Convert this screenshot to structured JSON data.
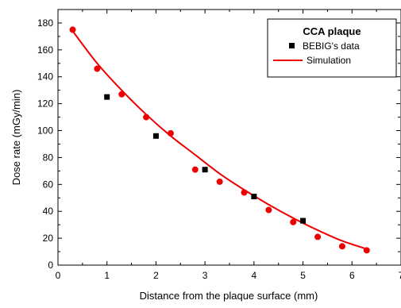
{
  "chart_data": {
    "type": "scatter",
    "title": "",
    "xlabel": "Distance from the plaque surface (mm)",
    "ylabel": "Dose rate (mGy/min)",
    "xlim": [
      0,
      7
    ],
    "ylim": [
      0,
      190
    ],
    "x_ticks": [
      0,
      1,
      2,
      3,
      4,
      5,
      6,
      7
    ],
    "y_ticks": [
      0,
      20,
      40,
      60,
      80,
      100,
      120,
      140,
      160,
      180
    ],
    "grid": false,
    "legend": {
      "title": "CCA plaque",
      "position": "top-right",
      "entries": [
        "BEBIG's data",
        "Simulation"
      ]
    },
    "series": [
      {
        "name": "BEBIG's data",
        "marker": "square",
        "color": "#000000",
        "x": [
          1,
          2,
          3,
          4,
          5
        ],
        "y": [
          125,
          96,
          71,
          51,
          33
        ]
      },
      {
        "name": "Simulation",
        "marker": "circle",
        "color": "#ee0000",
        "x": [
          0.3,
          0.8,
          1.3,
          1.8,
          2.3,
          2.8,
          3.3,
          3.8,
          4.3,
          4.8,
          5.3,
          5.8,
          6.3
        ],
        "y": [
          175,
          146,
          127,
          110,
          98,
          71,
          62,
          54,
          41,
          32,
          21,
          14,
          11
        ]
      }
    ],
    "fit_curve": {
      "series": "Simulation",
      "color": "#ee0000",
      "x": [
        0.3,
        0.8,
        1.3,
        1.8,
        2.3,
        2.8,
        3.3,
        3.8,
        4.3,
        4.8,
        5.3,
        5.8,
        6.3
      ],
      "y": [
        174,
        150,
        130,
        112,
        96,
        82,
        68,
        56,
        45,
        35,
        26,
        18,
        12
      ]
    }
  }
}
